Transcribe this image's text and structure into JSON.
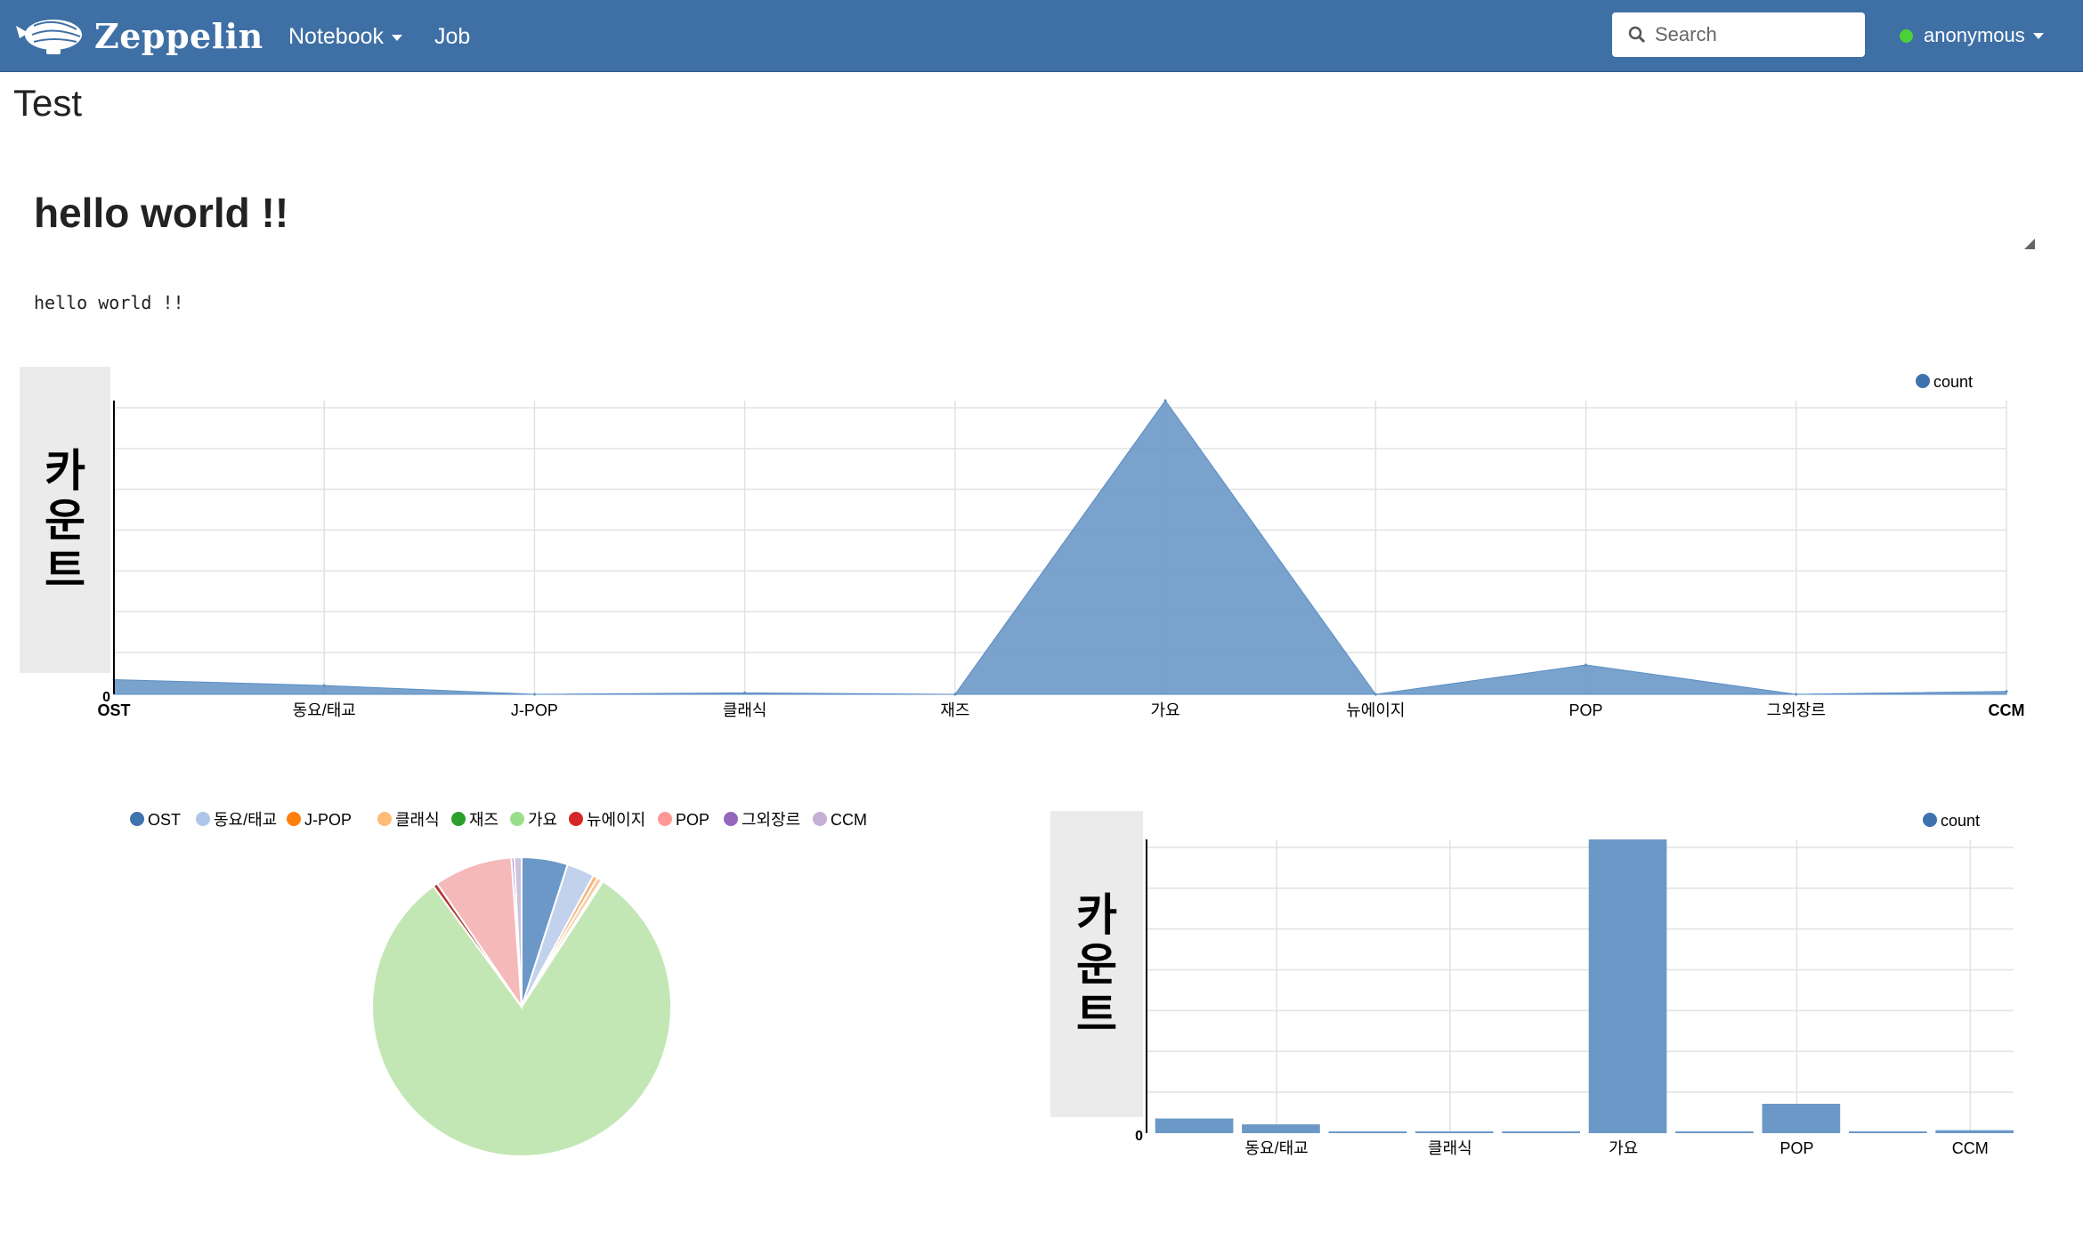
{
  "app": {
    "brand": "Zeppelin"
  },
  "nav": {
    "notebook_label": "Notebook",
    "job_label": "Job",
    "search_placeholder": "Search",
    "user_label": "anonymous"
  },
  "note": {
    "title": "Test"
  },
  "paragraph": {
    "heading": "hello world !!",
    "output": "hello world !!"
  },
  "colors": {
    "primary": "#3f70a5",
    "area_fill": "#6a98c8",
    "bar_fill": "#6b98c6",
    "status": "#4cd137"
  },
  "chart_data": [
    {
      "type": "area",
      "ylabel": "카운트",
      "legend": [
        "count"
      ],
      "legend_position": "top-right",
      "categories": [
        "OST",
        "동요/태교",
        "J-POP",
        "클래식",
        "재즈",
        "가요",
        "뉴에이지",
        "POP",
        "그외장르",
        "CCM"
      ],
      "series": [
        {
          "name": "count",
          "values": [
            5,
            3,
            0,
            0.5,
            0,
            100,
            0,
            10,
            0,
            1
          ]
        }
      ],
      "ylim": [
        0,
        100
      ],
      "y_tick_labels": [
        "0"
      ],
      "grid": true
    },
    {
      "type": "pie",
      "legend": [
        "OST",
        "동요/태교",
        "J-POP",
        "클래식",
        "재즈",
        "가요",
        "뉴에이지",
        "POP",
        "그외장르",
        "CCM"
      ],
      "legend_position": "top",
      "slice_order": [
        "OST",
        "동요/태교",
        "J-POP",
        "클래식",
        "재즈",
        "가요",
        "뉴에이지",
        "POP",
        "그외장르",
        "CCM"
      ],
      "values": [
        5,
        3,
        0.5,
        0.5,
        0.2,
        81,
        0.5,
        8.5,
        0.3,
        0.8
      ],
      "colors": [
        "#6b98c6",
        "#c3d2ec",
        "#f5b57a",
        "#f7c99d",
        "#7fbf7b",
        "#c3e7b4",
        "#b03c3c",
        "#f5b9b9",
        "#9a82c4",
        "#cdc3e0"
      ],
      "legend_colors": [
        "#3f73b0",
        "#aec7e8",
        "#ff7f0e",
        "#ffbb78",
        "#2ca02c",
        "#98df8a",
        "#d62728",
        "#ff9896",
        "#9467bd",
        "#c5b0d5"
      ]
    },
    {
      "type": "bar",
      "ylabel": "카운트",
      "legend": [
        "count"
      ],
      "legend_position": "top-right",
      "categories": [
        "OST",
        "동요/태교",
        "J-POP",
        "클래식",
        "재즈",
        "가요",
        "뉴에이지",
        "POP",
        "그외장르",
        "CCM"
      ],
      "x_tick_labels": [
        "",
        "동요/태교",
        "",
        "클래식",
        "",
        "가요",
        "",
        "POP",
        "",
        "CCM"
      ],
      "series": [
        {
          "name": "count",
          "values": [
            5,
            3,
            0,
            0.5,
            0,
            100,
            0,
            10,
            0,
            1
          ]
        }
      ],
      "ylim": [
        0,
        100
      ],
      "y_tick_labels": [
        "0"
      ],
      "grid": true
    }
  ]
}
